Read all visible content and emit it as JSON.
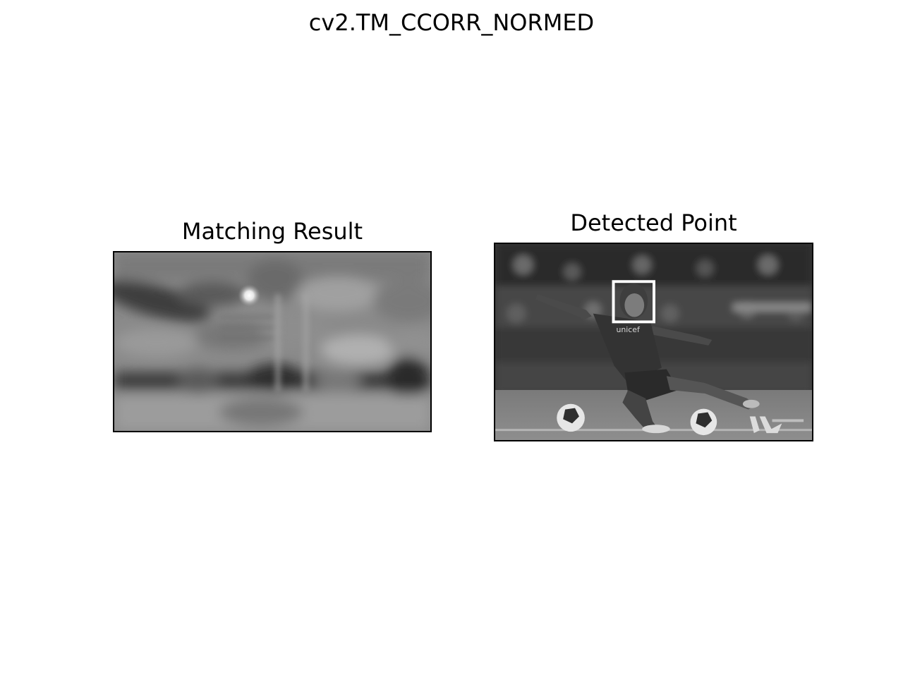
{
  "figure": {
    "suptitle": "cv2.TM_CCORR_NORMED",
    "colormap": "gray"
  },
  "panels": [
    {
      "title": "Matching Result",
      "content": "grayscale-correlation-map"
    },
    {
      "title": "Detected Point",
      "content": "grayscale-soccer-photo",
      "overlay": {
        "shape": "rectangle",
        "color": "#ffffff"
      },
      "visible_text": {
        "sponsor": "unicef"
      }
    }
  ]
}
